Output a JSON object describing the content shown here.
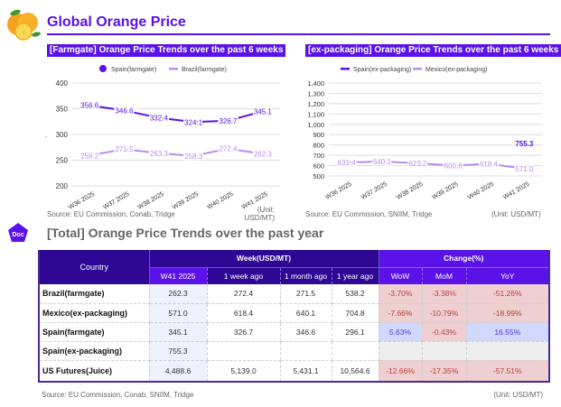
{
  "header": {
    "title": "Global Orange Price",
    "logo_icon": "orange-fruit-icon"
  },
  "charts": [
    {
      "header": "[Farmgate] Orange Price Trends over the past 6 weeks",
      "source": "Source: EU Commission, Conab, Tridge",
      "unit_line1": "(Unit:",
      "unit_line2": "USD/MT)",
      "stray_mark": "."
    },
    {
      "header": "[ex-packaging] Orange Price Trends over the past 6 weeks",
      "source": "Source: EU Commission, SNIIM, Tridge",
      "unit": "(Unit: USD/MT)"
    }
  ],
  "chart_data": [
    {
      "type": "line",
      "title": "[Farmgate] Orange Price Trends over the past 6 weeks",
      "x": [
        "W36 2025",
        "W37 2025",
        "W38 2025",
        "W39 2025",
        "W40 2025",
        "W41 2025"
      ],
      "series": [
        {
          "name": "Spain(farmgate)",
          "color": "#5a12e8",
          "values": [
            356.6,
            346.6,
            332.4,
            324.1,
            326.7,
            345.1
          ],
          "labels": [
            "356.6",
            "346.6",
            "332.4",
            "324.1",
            "326.7",
            "345.1"
          ]
        },
        {
          "name": "Brazil(farmgate)",
          "color": "#b88cf0",
          "values": [
            259.2,
            271.5,
            263.3,
            258.3,
            272.4,
            262.3
          ],
          "labels": [
            "259.2",
            "271.5",
            "263.3",
            "258.3",
            "272.4",
            "262.3"
          ]
        }
      ],
      "yticks": [
        "400",
        "350",
        "300",
        "250",
        "200"
      ],
      "ylim": [
        200,
        400
      ],
      "grid": true,
      "legend": "top"
    },
    {
      "type": "line",
      "title": "[ex-packaging] Orange Price Trends over the past 6 weeks",
      "x": [
        "W36 2025",
        "W37 2025",
        "W38 2025",
        "W39 2025",
        "W40 2025",
        "W41 2025"
      ],
      "series": [
        {
          "name": "Spain(ex-packaging)",
          "color": "#5a12e8",
          "values": [
            null,
            null,
            null,
            null,
            null,
            755.3
          ],
          "labels": [
            "",
            "",
            "",
            "",
            "",
            "755.3"
          ]
        },
        {
          "name": "Mexico(ex-packaging)",
          "color": "#b88cf0",
          "values": [
            631.4,
            640.1,
            623.2,
            600.8,
            618.4,
            571.0
          ],
          "labels": [
            "631.4",
            "640.1",
            "623.2",
            "600.8",
            "618.4",
            "571.0"
          ]
        }
      ],
      "yticks": [
        "1,400",
        "1,300",
        "1,200",
        "1,100",
        "1,000",
        "900",
        "800",
        "700",
        "600",
        "500"
      ],
      "ylim": [
        500,
        1400
      ],
      "grid": true,
      "legend": "top"
    }
  ],
  "section": {
    "doc_badge": "Doc",
    "title": "[Total] Orange Price Trends over the past year"
  },
  "table": {
    "country_header": "Country",
    "group_week": "Week(USD/MT)",
    "group_change": "Change(%)",
    "week_cols": [
      "W41 2025",
      "1 week ago",
      "1 month ago",
      "1 year ago"
    ],
    "change_cols": [
      "WoW",
      "MoM",
      "YoY"
    ],
    "rows": [
      {
        "country": "Brazil(farmgate)",
        "w41": "262.3",
        "w1": "272.4",
        "m1": "271.5",
        "y1": "538.2",
        "wow": "-3.70%",
        "mom": "-3.38%",
        "yoy": "-51.26%"
      },
      {
        "country": "Mexico(ex-packaging)",
        "w41": "571.0",
        "w1": "618.4",
        "m1": "640.1",
        "y1": "704.8",
        "wow": "-7.66%",
        "mom": "-10.79%",
        "yoy": "-18.99%"
      },
      {
        "country": "Spain(farmgate)",
        "w41": "345.1",
        "w1": "326.7",
        "m1": "346.6",
        "y1": "296.1",
        "wow": "5.63%",
        "mom": "-0.43%",
        "yoy": "16.55%"
      },
      {
        "country": "Spain(ex-packaging)",
        "w41": "755.3",
        "w1": "",
        "m1": "",
        "y1": "",
        "wow": "",
        "mom": "",
        "yoy": ""
      },
      {
        "country": "US Futures(Juice)",
        "w41": "4,488.6",
        "w1": "5,139.0",
        "m1": "5,431.1",
        "y1": "10,564.6",
        "wow": "-12.66%",
        "mom": "-17.35%",
        "yoy": "-57.51%"
      }
    ],
    "source": "Source: EU Commission, Conab, SNIIM, Tridge",
    "unit": "(Unit: USD/MT)"
  }
}
